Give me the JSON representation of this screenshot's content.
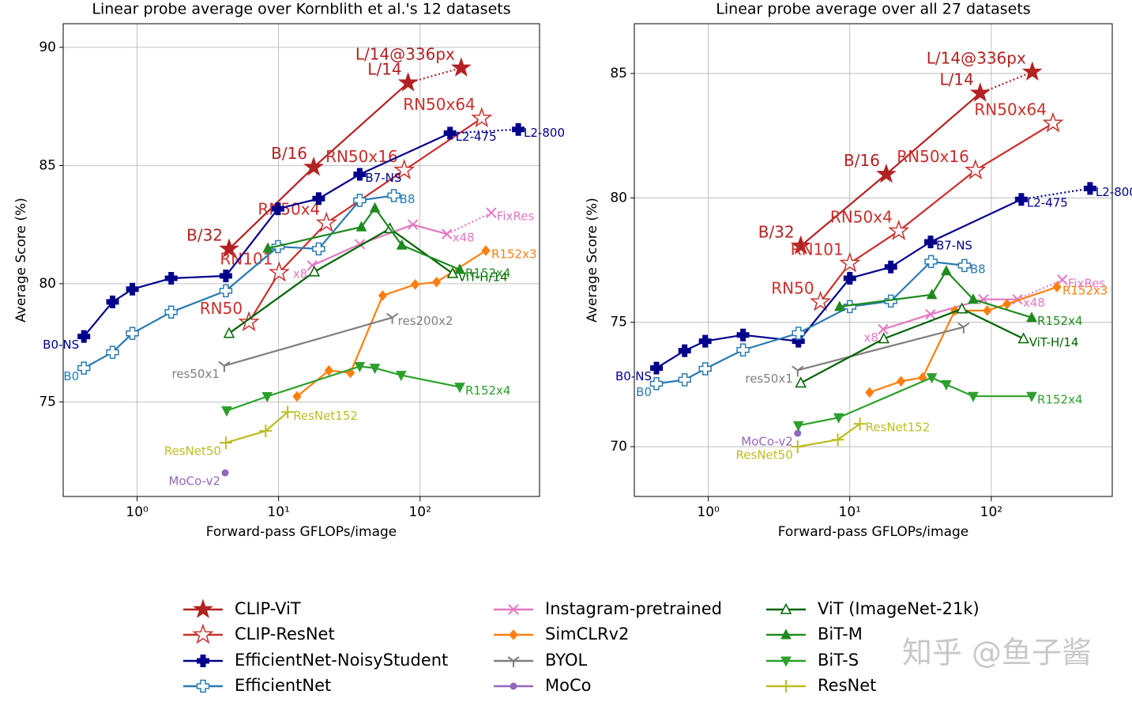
{
  "chart_data": [
    {
      "type": "line",
      "title": "Linear probe average over Kornblith et al.'s 12 datasets",
      "xlabel": "Forward-pass GFLOPs/image",
      "ylabel": "Average Score (%)",
      "xscale": "log",
      "grid": true,
      "xlim": [
        0.3,
        700
      ],
      "ylim": [
        71,
        91
      ],
      "xticks": [
        {
          "value": 1,
          "label": "10⁰"
        },
        {
          "value": 10,
          "label": "10¹"
        },
        {
          "value": 100,
          "label": "10²"
        }
      ],
      "yticks": [
        75,
        80,
        85,
        90
      ],
      "series": [
        {
          "name": "CLIP-ViT",
          "color": "#b22222",
          "marker": "star",
          "dotted_last": true,
          "x": [
            4.47,
            17.7,
            82.4,
            195.6
          ],
          "values": [
            81.47,
            84.93,
            88.5,
            89.13
          ],
          "labels": [
            "B/32",
            "B/16",
            "L/14",
            "L/14@336px"
          ]
        },
        {
          "name": "CLIP-ResNet",
          "color": "#c8302c",
          "marker": "star-open",
          "x": [
            6.17,
            10.1,
            21.8,
            77.3,
            273
          ],
          "values": [
            78.37,
            80.47,
            82.57,
            84.8,
            87.0
          ],
          "labels": [
            "RN50",
            "RN101",
            "RN50x4",
            "RN50x16",
            "RN50x64"
          ]
        },
        {
          "name": "EfficientNet-NoisyStudent",
          "color": "#00008b",
          "marker": "plus",
          "dotted_last": true,
          "x": [
            0.42,
            0.67,
            0.925,
            1.74,
            4.24,
            9.9,
            19.2,
            37.5,
            163,
            495
          ],
          "values": [
            77.77,
            79.23,
            79.77,
            80.23,
            80.33,
            83.17,
            83.6,
            84.63,
            86.37,
            86.53
          ],
          "labels": [
            "B0-NS",
            null,
            null,
            null,
            null,
            null,
            null,
            "B7-NS",
            "L2-475",
            "L2-800"
          ]
        },
        {
          "name": "EfficientNet",
          "color": "#2a7ab0",
          "marker": "plus-open",
          "x": [
            0.42,
            0.67,
            0.925,
            1.74,
            4.24,
            9.9,
            19.2,
            37.5,
            65.3
          ],
          "values": [
            76.43,
            77.1,
            77.9,
            78.8,
            79.7,
            81.57,
            81.47,
            83.53,
            83.73
          ],
          "labels": [
            "B0",
            null,
            null,
            null,
            null,
            null,
            null,
            null,
            "B8"
          ]
        },
        {
          "name": "Instagram-pretrained",
          "color": "#e377c2",
          "marker": "x",
          "dotted_last": true,
          "x": [
            17.3,
            37.5,
            89,
            155,
            319
          ],
          "values": [
            80.77,
            81.67,
            82.5,
            82.1,
            83.0
          ],
          "labels": [
            "x8",
            null,
            null,
            "x48",
            "FixRes"
          ]
        },
        {
          "name": "SimCLRv2",
          "color": "#ff7f0e",
          "marker": "diamond",
          "x": [
            13.5,
            22.7,
            32.2,
            54.5,
            92.5,
            131,
            292
          ],
          "values": [
            75.23,
            76.33,
            76.23,
            79.5,
            79.97,
            80.07,
            81.4
          ],
          "labels": [
            null,
            null,
            null,
            null,
            null,
            null,
            "R152x3"
          ]
        },
        {
          "name": "BYOL",
          "color": "#7f7f7f",
          "marker": "tri",
          "x": [
            4.13,
            63.7
          ],
          "values": [
            76.53,
            78.57
          ],
          "labels": [
            "res50x1",
            "res200x2"
          ]
        },
        {
          "name": "MoCo",
          "color": "#9467bd",
          "marker": "circle",
          "x": [
            4.19
          ],
          "values": [
            72.0
          ],
          "labels": [
            "MoCo-v2"
          ]
        },
        {
          "name": "ViT (ImageNet-21k)",
          "color": "#006400",
          "marker": "triangle-open",
          "x": [
            4.47,
            17.9,
            61.3,
            170
          ],
          "values": [
            77.9,
            80.5,
            82.33,
            80.43
          ],
          "labels": [
            null,
            null,
            null,
            "ViT-H/14"
          ]
        },
        {
          "name": "BiT-M",
          "color": "#1e8b1e",
          "marker": "triangle",
          "x": [
            8.4,
            38.5,
            48,
            74.3,
            191
          ],
          "values": [
            81.5,
            82.4,
            83.2,
            81.63,
            80.6
          ],
          "labels": [
            null,
            null,
            null,
            null,
            "R152x4"
          ]
        },
        {
          "name": "BiT-S",
          "color": "#2ca02c",
          "marker": "triangle-down",
          "x": [
            4.3,
            8.3,
            37.5,
            48,
            73.5,
            191
          ],
          "values": [
            74.63,
            75.23,
            76.5,
            76.43,
            76.13,
            75.63
          ],
          "labels": [
            null,
            null,
            null,
            null,
            null,
            "R152x4"
          ]
        },
        {
          "name": "ResNet",
          "color": "#bcbd22",
          "marker": "plus-thin",
          "x": [
            4.24,
            8.1,
            11.6
          ],
          "values": [
            73.27,
            73.77,
            74.57
          ],
          "labels": [
            "ResNet50",
            null,
            "ResNet152"
          ]
        }
      ]
    },
    {
      "type": "line",
      "title": "Linear probe average over all 27 datasets",
      "xlabel": "Forward-pass GFLOPs/image",
      "ylabel": "Average Score (%)",
      "xscale": "log",
      "grid": true,
      "xlim": [
        0.3,
        716
      ],
      "ylim": [
        68,
        87
      ],
      "xticks": [
        {
          "value": 1,
          "label": "10⁰"
        },
        {
          "value": 10,
          "label": "10¹"
        },
        {
          "value": 100,
          "label": "10²"
        }
      ],
      "yticks": [
        70,
        75,
        80,
        85
      ],
      "series": [
        {
          "name": "CLIP-ViT",
          "color": "#b22222",
          "marker": "star",
          "dotted_last": true,
          "x": [
            4.5,
            18.1,
            83.5,
            195
          ],
          "values": [
            78.07,
            80.95,
            84.21,
            85.06
          ],
          "labels": [
            "B/32",
            "B/16",
            "L/14",
            "L/14@336px"
          ]
        },
        {
          "name": "CLIP-ResNet",
          "color": "#c8302c",
          "marker": "star-open",
          "x": [
            6.2,
            10.0,
            22.2,
            77.3,
            273
          ],
          "values": [
            75.82,
            77.37,
            78.67,
            81.11,
            83.0
          ],
          "labels": [
            "RN50",
            "RN101",
            "RN50x4",
            "RN50x16",
            "RN50x64"
          ]
        },
        {
          "name": "EfficientNet-NoisyStudent",
          "color": "#00008b",
          "marker": "plus",
          "dotted_last": true,
          "x": [
            0.43,
            0.68,
            0.95,
            1.76,
            4.33,
            10.0,
            19.5,
            37.2,
            163,
            499
          ],
          "values": [
            73.16,
            73.86,
            74.24,
            74.49,
            74.24,
            76.77,
            77.22,
            78.23,
            79.94,
            80.38
          ],
          "labels": [
            "B0-NS",
            null,
            null,
            null,
            null,
            null,
            null,
            "B7-NS",
            "L2-475",
            "L2-800"
          ]
        },
        {
          "name": "EfficientNet",
          "color": "#2a7ab0",
          "marker": "plus-open",
          "x": [
            0.43,
            0.68,
            0.95,
            1.76,
            4.33,
            10.0,
            19.5,
            37.5,
            64.6
          ],
          "values": [
            72.53,
            72.69,
            73.13,
            73.89,
            74.56,
            75.63,
            75.85,
            77.44,
            77.28
          ],
          "labels": [
            "B0",
            null,
            null,
            null,
            null,
            null,
            null,
            null,
            "B8"
          ]
        },
        {
          "name": "Instagram-pretrained",
          "color": "#e377c2",
          "marker": "x",
          "dotted_last": true,
          "x": [
            17.2,
            37.2,
            88,
            153,
            318
          ],
          "values": [
            74.72,
            75.32,
            75.92,
            75.92,
            76.71
          ],
          "labels": [
            "x8",
            null,
            null,
            "x48",
            "FixRes"
          ]
        },
        {
          "name": "SimCLRv2",
          "color": "#ff7f0e",
          "marker": "diamond",
          "x": [
            13.8,
            23,
            32.7,
            55.3,
            93.7,
            129,
            291
          ],
          "values": [
            72.18,
            72.63,
            72.78,
            75.47,
            75.47,
            75.73,
            76.42
          ],
          "labels": [
            null,
            null,
            null,
            null,
            null,
            null,
            "R152x3"
          ]
        },
        {
          "name": "BYOL",
          "color": "#7f7f7f",
          "marker": "tri",
          "x": [
            4.28,
            63.7
          ],
          "values": [
            73.07,
            74.81
          ],
          "labels": [
            "res50x1",
            null
          ]
        },
        {
          "name": "MoCo",
          "color": "#9467bd",
          "marker": "circle",
          "x": [
            4.28
          ],
          "values": [
            70.54
          ],
          "labels": [
            "MoCo-v2"
          ]
        },
        {
          "name": "ViT (ImageNet-21k)",
          "color": "#006400",
          "marker": "triangle-open",
          "x": [
            4.5,
            17.4,
            62.0,
            169
          ],
          "values": [
            72.56,
            74.34,
            75.54,
            74.34
          ],
          "labels": [
            null,
            null,
            null,
            "ViT-H/14"
          ]
        },
        {
          "name": "BiT-M",
          "color": "#1e8b1e",
          "marker": "triangle",
          "x": [
            8.46,
            38.0,
            48.1,
            74.5,
            193
          ],
          "values": [
            75.63,
            76.11,
            77.06,
            75.92,
            75.19
          ],
          "labels": [
            null,
            null,
            null,
            null,
            "R152x4"
          ]
        },
        {
          "name": "BiT-S",
          "color": "#2ca02c",
          "marker": "triangle-down",
          "x": [
            4.33,
            8.35,
            38,
            48.1,
            74.5,
            193
          ],
          "values": [
            70.85,
            71.17,
            72.78,
            72.5,
            72.03,
            72.03
          ],
          "labels": [
            null,
            null,
            null,
            null,
            null,
            "R152x4"
          ]
        },
        {
          "name": "ResNet",
          "color": "#bcbd22",
          "marker": "plus-thin",
          "x": [
            4.28,
            8.23,
            11.8
          ],
          "values": [
            70.0,
            70.28,
            70.92
          ],
          "labels": [
            "ResNet50",
            null,
            "ResNet152"
          ]
        }
      ]
    }
  ],
  "watermark": "知乎 @鱼子酱"
}
